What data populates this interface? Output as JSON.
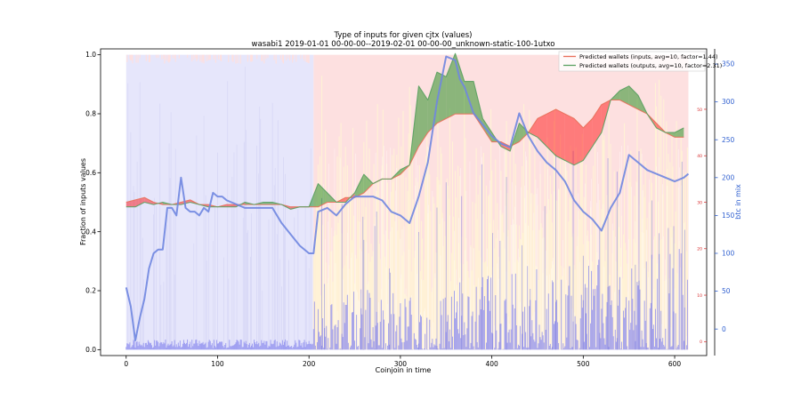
{
  "chart_data": {
    "type": "line",
    "title": "Type of inputs for given cjtx (values)",
    "subtitle": "wasabi1 2019-01-01 00-00-00--2019-02-01 00-00-00_unknown-static-100-1utxo",
    "xlabel": "Coinjoin in time",
    "ylabel": "Fraction of inputs values",
    "y2label": "btc in mix",
    "xlim": [
      -28,
      635
    ],
    "ylim": [
      -0.02,
      1.02
    ],
    "y2lim": [
      -35,
      370
    ],
    "y3lim": [
      -3,
      63
    ],
    "x_ticks": [
      0,
      100,
      200,
      300,
      400,
      500,
      600
    ],
    "y_ticks": [
      0.0,
      0.2,
      0.4,
      0.6,
      0.8,
      1.0
    ],
    "y2_ticks": [
      0,
      50,
      100,
      150,
      200,
      250,
      300,
      350
    ],
    "y3_ticks": [
      0,
      10,
      20,
      30,
      40,
      50
    ],
    "legend_position": "top-right",
    "legend": [
      {
        "label": "Predicted wallets (inputs, avg=10, factor=1.44)",
        "color": "#e8705a"
      },
      {
        "label": "Predicted wallets (outputs, avg=10, factor=2.31)",
        "color": "#5aa060"
      }
    ],
    "colors": {
      "inputs_line": "#e8705a",
      "outputs_line": "#5aa060",
      "inputs_fill": "#ff0000",
      "outputs_fill": "#008000",
      "btc_line": "#6f86e0",
      "background_fresh": "#e6e6fb",
      "background_remix": "#fde0e0",
      "background_other": "#fff2d6",
      "bars": "#8888ee",
      "axis3_ticks": "#d62728",
      "axis2_ticks": "#3060d0"
    },
    "regime_change_x": 205,
    "predicted_wallets_axis": "y3",
    "series": [
      {
        "name": "Predicted wallets (inputs, avg=10, factor=1.44)",
        "axis": "y3",
        "x": [
          0,
          10,
          20,
          30,
          40,
          50,
          60,
          70,
          80,
          90,
          100,
          110,
          120,
          130,
          140,
          150,
          160,
          170,
          180,
          190,
          200,
          210,
          220,
          230,
          240,
          250,
          260,
          270,
          280,
          290,
          300,
          310,
          320,
          330,
          340,
          350,
          360,
          370,
          380,
          390,
          400,
          410,
          420,
          430,
          440,
          450,
          460,
          470,
          480,
          490,
          500,
          510,
          520,
          530,
          540,
          550,
          560,
          570,
          580,
          590,
          600,
          610
        ],
        "values": [
          30,
          30.5,
          31,
          30,
          29.5,
          29.5,
          30,
          30.5,
          29.5,
          29.5,
          29,
          29.5,
          29.5,
          29.5,
          29.5,
          29.5,
          29.5,
          29.5,
          29,
          29,
          29,
          29,
          30,
          30,
          31,
          31,
          32,
          34,
          35,
          35,
          36,
          38,
          42,
          45,
          47,
          48,
          49,
          49,
          49,
          46,
          43,
          43,
          42,
          43,
          45,
          48,
          49,
          50,
          49,
          48,
          46,
          48,
          51,
          52,
          52,
          51,
          50,
          49,
          47,
          45,
          44,
          44
        ]
      },
      {
        "name": "Predicted wallets (outputs, avg=10, factor=2.31)",
        "axis": "y3",
        "x": [
          0,
          10,
          20,
          30,
          40,
          50,
          60,
          70,
          80,
          90,
          100,
          110,
          120,
          130,
          140,
          150,
          160,
          170,
          180,
          190,
          200,
          210,
          220,
          230,
          240,
          250,
          260,
          270,
          280,
          290,
          300,
          310,
          320,
          330,
          340,
          350,
          360,
          370,
          380,
          390,
          400,
          410,
          420,
          430,
          440,
          450,
          460,
          470,
          480,
          490,
          500,
          510,
          520,
          530,
          540,
          550,
          560,
          570,
          580,
          590,
          600,
          610
        ],
        "values": [
          29,
          29,
          30,
          29.5,
          30,
          29.5,
          29.5,
          30,
          29.5,
          29,
          29,
          29,
          29,
          30,
          29.5,
          30,
          30,
          29.5,
          28.5,
          29,
          29,
          34,
          32,
          30,
          30,
          32,
          36,
          34,
          35,
          35,
          37,
          38,
          55,
          52,
          58,
          57,
          62,
          56,
          56,
          48,
          45,
          42,
          41,
          47,
          45,
          44,
          42,
          40,
          39,
          38,
          39,
          42,
          45,
          52,
          54,
          55,
          53,
          49,
          46,
          45,
          45,
          46
        ]
      },
      {
        "name": "btc in mix",
        "axis": "y2",
        "x": [
          0,
          5,
          10,
          15,
          20,
          25,
          30,
          35,
          40,
          45,
          50,
          55,
          60,
          65,
          70,
          75,
          80,
          85,
          90,
          95,
          100,
          105,
          110,
          120,
          130,
          140,
          150,
          160,
          170,
          180,
          190,
          200,
          205,
          210,
          220,
          230,
          240,
          250,
          260,
          270,
          280,
          290,
          300,
          310,
          320,
          330,
          340,
          350,
          360,
          365,
          370,
          380,
          390,
          400,
          410,
          420,
          430,
          440,
          450,
          460,
          470,
          480,
          490,
          500,
          510,
          520,
          530,
          540,
          550,
          560,
          570,
          580,
          590,
          600,
          610,
          615
        ],
        "values": [
          55,
          30,
          -15,
          15,
          40,
          80,
          100,
          105,
          105,
          160,
          160,
          150,
          200,
          160,
          155,
          155,
          150,
          160,
          155,
          180,
          175,
          175,
          170,
          165,
          160,
          160,
          160,
          160,
          140,
          125,
          110,
          100,
          100,
          155,
          160,
          150,
          165,
          175,
          175,
          175,
          170,
          155,
          150,
          140,
          175,
          220,
          300,
          360,
          355,
          330,
          320,
          285,
          270,
          255,
          245,
          240,
          285,
          255,
          235,
          220,
          210,
          195,
          170,
          155,
          145,
          130,
          160,
          180,
          230,
          220,
          210,
          205,
          200,
          195,
          200,
          205
        ]
      }
    ]
  }
}
